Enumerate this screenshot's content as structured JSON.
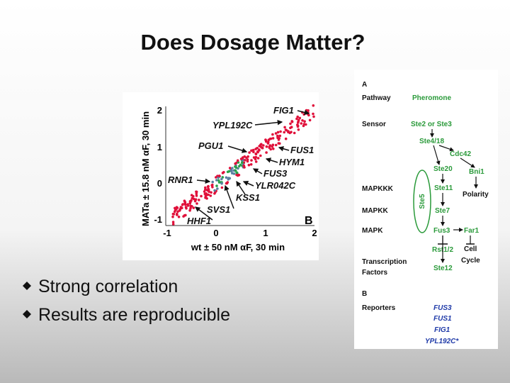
{
  "title": "Does Dosage Matter?",
  "figure": {
    "y_axis_label": "MATa ± 15.8 nM αF, 30 min",
    "x_axis_label": "wt ± 50 nM αF, 30 min",
    "panel_label": "B",
    "x_ticks": [
      "-1",
      "0",
      "1",
      "2"
    ],
    "y_ticks": [
      "2",
      "1",
      "0",
      "-1"
    ],
    "gene_labels": [
      "FIG1",
      "YPL192C",
      "PGU1",
      "FUS1",
      "HYM1",
      "FUS3",
      "RNR1",
      "YLR042C",
      "KSS1",
      "SVS1",
      "HHF1"
    ]
  },
  "bullets": [
    "Strong correlation",
    "Results are reproducible"
  ],
  "diagram": {
    "panel_a": "A",
    "rows": [
      "Pathway",
      "Sensor",
      "MAPKKK",
      "MAPKK",
      "MAPK",
      "Transcription",
      "Factors"
    ],
    "nodes": [
      "Pheromone",
      "Ste2 or Ste3",
      "Ste4/18",
      "Cdc42",
      "Ste20",
      "Bni1",
      "Ste11",
      "Polarity",
      "Ste5",
      "Ste7",
      "Fus3",
      "Far1",
      "Cell",
      "Cycle",
      "Rst1/2",
      "Ste12"
    ],
    "panel_b": "B",
    "reporters_label": "Reporters",
    "reporters": [
      "FUS3",
      "FUS1",
      "FIG1",
      "YPL192C*"
    ]
  }
}
